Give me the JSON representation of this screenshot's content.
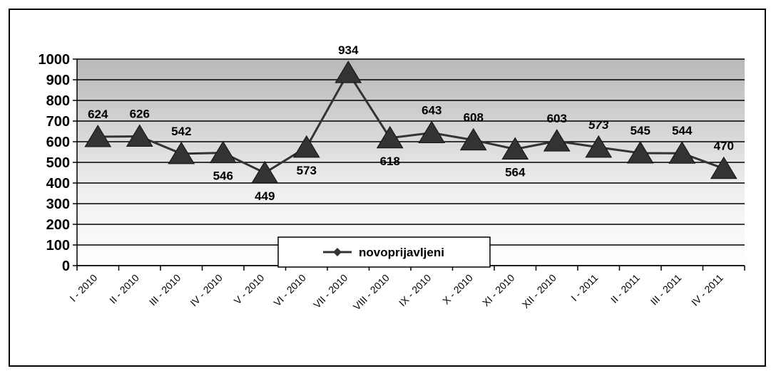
{
  "chart_data": {
    "type": "line",
    "categories": [
      "I - 2010",
      "II - 2010",
      "III - 2010",
      "IV - 2010",
      "V - 2010",
      "VI - 2010",
      "VII - 2010",
      "VIII - 2010",
      "IX - 2010",
      "X - 2010",
      "XI - 2010",
      "XII - 2010",
      "I - 2011",
      "II - 2011",
      "III - 2011",
      "IV - 2011"
    ],
    "series": [
      {
        "name": "novoprijavljeni",
        "values": [
          624,
          626,
          542,
          546,
          449,
          573,
          934,
          618,
          643,
          608,
          564,
          603,
          573,
          545,
          544,
          470
        ]
      }
    ],
    "data_labels": [
      "624",
      "626",
      "542",
      "546",
      "449",
      "573",
      "934",
      "618",
      "643",
      "608",
      "564",
      "603",
      "573",
      "545",
      "544",
      "470"
    ],
    "y_ticks": [
      "0",
      "100",
      "200",
      "300",
      "400",
      "500",
      "600",
      "700",
      "800",
      "900",
      "1000"
    ],
    "ylim": [
      0,
      1000
    ],
    "grid": true,
    "legend_position": "bottom-center",
    "title": "",
    "xlabel": "",
    "ylabel": "",
    "colors": {
      "line": "#333333",
      "marker": "#333333"
    }
  }
}
